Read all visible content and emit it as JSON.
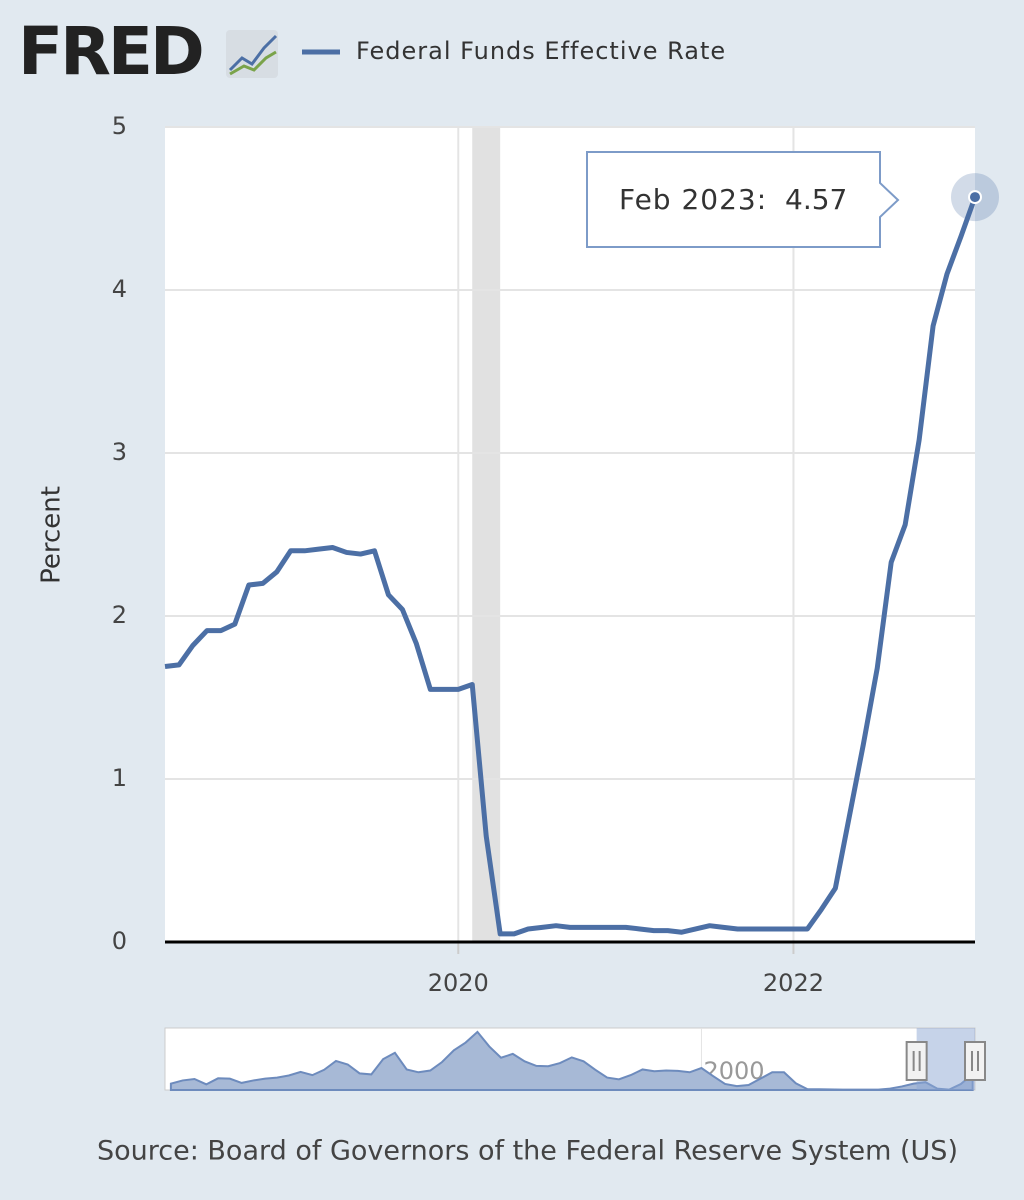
{
  "logo": "FRED",
  "chart_data": {
    "type": "line",
    "legend": "top",
    "y_label": "Percent",
    "source": "Source: Board of Governors of the Federal Reserve System (US)",
    "x": [
      "2018-04",
      "2018-05",
      "2018-06",
      "2018-07",
      "2018-08",
      "2018-09",
      "2018-10",
      "2018-11",
      "2018-12",
      "2019-01",
      "2019-02",
      "2019-03",
      "2019-04",
      "2019-05",
      "2019-06",
      "2019-07",
      "2019-08",
      "2019-09",
      "2019-10",
      "2019-11",
      "2019-12",
      "2020-01",
      "2020-02",
      "2020-03",
      "2020-04",
      "2020-05",
      "2020-06",
      "2020-07",
      "2020-08",
      "2020-09",
      "2020-10",
      "2020-11",
      "2020-12",
      "2021-01",
      "2021-02",
      "2021-03",
      "2021-04",
      "2021-05",
      "2021-06",
      "2021-07",
      "2021-08",
      "2021-09",
      "2021-10",
      "2021-11",
      "2021-12",
      "2022-01",
      "2022-02",
      "2022-03",
      "2022-04",
      "2022-05",
      "2022-06",
      "2022-07",
      "2022-08",
      "2022-09",
      "2022-10",
      "2022-11",
      "2022-12",
      "2023-01",
      "2023-02"
    ],
    "series": [
      {
        "name": "Federal Funds Effective Rate",
        "color": "#4c6fa5",
        "values": [
          1.69,
          1.7,
          1.82,
          1.91,
          1.91,
          1.95,
          2.19,
          2.2,
          2.27,
          2.4,
          2.4,
          2.41,
          2.42,
          2.39,
          2.38,
          2.4,
          2.13,
          2.04,
          1.83,
          1.55,
          1.55,
          1.55,
          1.58,
          0.65,
          0.05,
          0.05,
          0.08,
          0.09,
          0.1,
          0.09,
          0.09,
          0.09,
          0.09,
          0.09,
          0.08,
          0.07,
          0.07,
          0.06,
          0.08,
          0.1,
          0.09,
          0.08,
          0.08,
          0.08,
          0.08,
          0.08,
          0.08,
          0.2,
          0.33,
          0.77,
          1.21,
          1.68,
          2.33,
          2.56,
          3.08,
          3.78,
          4.1,
          4.33,
          4.57
        ]
      }
    ],
    "xlim": [
      "2018-04",
      "2023-02"
    ],
    "xticks": [
      {
        "value": "2020-01",
        "label": "2020"
      },
      {
        "value": "2022-01",
        "label": "2022"
      }
    ],
    "ylim": [
      0,
      5
    ],
    "yticks": [
      0,
      1,
      2,
      3,
      4,
      5
    ],
    "grid": true,
    "recession": [
      "2020-02",
      "2020-04"
    ],
    "tooltip": {
      "label": "Feb 2023:"
    },
    "navigator": {
      "x": [
        1955,
        1956,
        1957,
        1958,
        1959,
        1960,
        1961,
        1962,
        1963,
        1964,
        1965,
        1966,
        1967,
        1968,
        1969,
        1970,
        1971,
        1972,
        1973,
        1974,
        1975,
        1976,
        1977,
        1978,
        1979,
        1980,
        1981,
        1982,
        1983,
        1984,
        1985,
        1986,
        1987,
        1988,
        1989,
        1990,
        1991,
        1992,
        1993,
        1994,
        1995,
        1996,
        1997,
        1998,
        1999,
        2000,
        2001,
        2002,
        2003,
        2004,
        2005,
        2006,
        2007,
        2008,
        2009,
        2010,
        2012,
        2014,
        2015,
        2016,
        2017,
        2018,
        2019,
        2020,
        2021,
        2022,
        2023
      ],
      "values": [
        1.8,
        2.7,
        3.1,
        1.6,
        3.3,
        3.2,
        2.0,
        2.7,
        3.2,
        3.5,
        4.1,
        5.1,
        4.2,
        5.7,
        8.2,
        7.2,
        4.7,
        4.4,
        8.7,
        10.5,
        5.8,
        5.0,
        5.5,
        7.9,
        11.2,
        13.4,
        16.4,
        12.3,
        9.1,
        10.2,
        8.1,
        6.8,
        6.7,
        7.6,
        9.2,
        8.1,
        5.7,
        3.5,
        3.0,
        4.2,
        5.8,
        5.3,
        5.5,
        5.4,
        5.0,
        6.2,
        3.9,
        1.7,
        1.1,
        1.4,
        3.2,
        5.0,
        5.0,
        1.9,
        0.2,
        0.2,
        0.1,
        0.1,
        0.1,
        0.4,
        1.0,
        1.8,
        2.2,
        0.4,
        0.1,
        1.7,
        4.5
      ],
      "xlim": [
        1954.5,
        2023.2
      ],
      "ylim": [
        0,
        17.5
      ],
      "xticks": [
        2000
      ],
      "window": [
        2018.25,
        2023.2
      ]
    }
  }
}
